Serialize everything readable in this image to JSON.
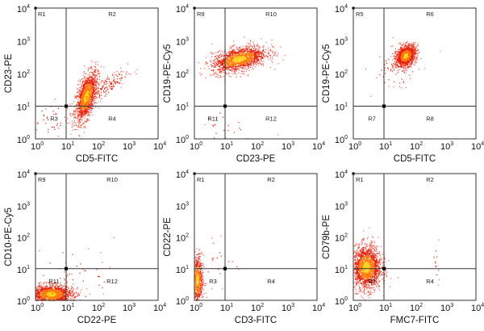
{
  "chart_data": [
    {
      "type": "scatter",
      "xlabel": "CD5-FITC",
      "ylabel": "CD23-PE",
      "xlim": [
        1,
        10000
      ],
      "ylim": [
        1,
        10000
      ],
      "scale": "log",
      "gate": [
        10,
        10
      ],
      "regions": [
        "R1",
        "R2",
        "R3",
        "R4"
      ],
      "clusters": [
        {
          "cx": 1.65,
          "cy": 1.3,
          "sx": 0.18,
          "sy": 0.38,
          "rho": 0.55,
          "n": 1500
        },
        {
          "cx": 2.3,
          "cy": 1.6,
          "sx": 0.35,
          "sy": 0.25,
          "rho": 0.8,
          "n": 150
        },
        {
          "cx": 0.5,
          "cy": 0.6,
          "sx": 0.3,
          "sy": 0.3,
          "rho": 0,
          "n": 40
        }
      ]
    },
    {
      "type": "scatter",
      "xlabel": "CD23-PE",
      "ylabel": "CD19-PE-Cy5",
      "xlim": [
        1,
        10000
      ],
      "ylim": [
        1,
        10000
      ],
      "scale": "log",
      "gate": [
        10,
        10
      ],
      "regions": [
        "R9",
        "R10",
        "R11",
        "R12"
      ],
      "clusters": [
        {
          "cx": 1.45,
          "cy": 2.45,
          "sx": 0.45,
          "sy": 0.2,
          "rho": 0.45,
          "n": 1600
        },
        {
          "cx": 1.0,
          "cy": 0.5,
          "sx": 0.4,
          "sy": 0.4,
          "rho": 0,
          "n": 25
        }
      ]
    },
    {
      "type": "scatter",
      "xlabel": "CD5-FITC",
      "ylabel": "CD19-PE-Cy5",
      "xlim": [
        1,
        10000
      ],
      "ylim": [
        1,
        10000
      ],
      "scale": "log",
      "gate": [
        10,
        10
      ],
      "regions": [
        "R5",
        "R6",
        "R7",
        "R8"
      ],
      "clusters": [
        {
          "cx": 1.7,
          "cy": 2.55,
          "sx": 0.16,
          "sy": 0.16,
          "rho": 0.3,
          "n": 1400
        },
        {
          "cx": 1.4,
          "cy": 2.2,
          "sx": 0.4,
          "sy": 0.35,
          "rho": 0.3,
          "n": 80
        }
      ]
    },
    {
      "type": "scatter",
      "xlabel": "CD22-PE",
      "ylabel": "CD10-PE-Cy5",
      "xlim": [
        1,
        10000
      ],
      "ylim": [
        1,
        10000
      ],
      "scale": "log",
      "gate": [
        10,
        10
      ],
      "regions": [
        "R9",
        "R10",
        "R11",
        "R12"
      ],
      "clusters": [
        {
          "cx": 0.5,
          "cy": 0.2,
          "sx": 0.35,
          "sy": 0.15,
          "rho": 0,
          "n": 1500
        },
        {
          "cx": 1.2,
          "cy": 0.8,
          "sx": 0.7,
          "sy": 0.5,
          "rho": 0,
          "n": 50
        }
      ]
    },
    {
      "type": "scatter",
      "xlabel": "CD3-FITC",
      "ylabel": "CD22-PE",
      "xlim": [
        1,
        10000
      ],
      "ylim": [
        1,
        10000
      ],
      "scale": "log",
      "gate": [
        10,
        10
      ],
      "regions": [
        "R1",
        "R2",
        "R3",
        "R4"
      ],
      "clusters": [
        {
          "cx": 0.08,
          "cy": 0.65,
          "sx": 0.1,
          "sy": 0.4,
          "rho": 0,
          "n": 700
        },
        {
          "cx": 0.8,
          "cy": 1.2,
          "sx": 0.4,
          "sy": 0.5,
          "rho": 0,
          "n": 20
        }
      ]
    },
    {
      "type": "scatter",
      "xlabel": "FMC7-FITC",
      "ylabel": "CD79b-PE",
      "xlim": [
        1,
        10000
      ],
      "ylim": [
        1,
        10000
      ],
      "scale": "log",
      "gate": [
        10,
        10
      ],
      "regions": [
        "R1",
        "R2",
        "R3",
        "R4"
      ],
      "clusters": [
        {
          "cx": 0.42,
          "cy": 1.05,
          "sx": 0.24,
          "sy": 0.35,
          "rho": 0,
          "n": 1800
        },
        {
          "cx": 2.7,
          "cy": 1.3,
          "sx": 0.08,
          "sy": 0.35,
          "rho": 0,
          "n": 12
        }
      ]
    }
  ],
  "tick_base": "10",
  "tick_exponents": [
    "0",
    "1",
    "2",
    "3",
    "4"
  ],
  "colors": {
    "low": "#e8200a",
    "mid": "#ff7a10",
    "high": "#ffd21a",
    "axis": "#333333"
  }
}
